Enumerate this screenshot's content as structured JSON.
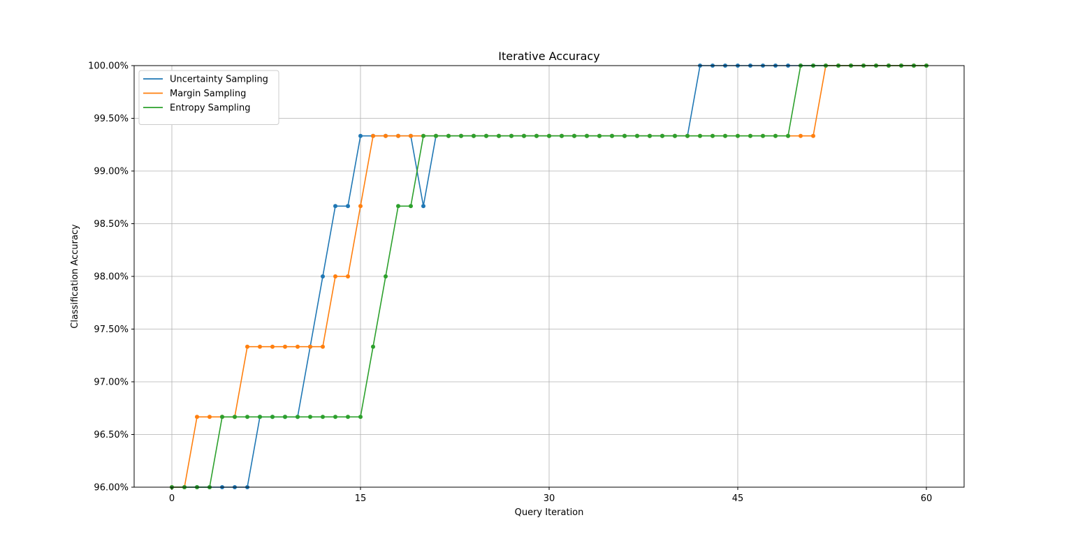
{
  "chart_data": {
    "type": "line",
    "title": "Iterative Accuracy",
    "xlabel": "Query Iteration",
    "ylabel": "Classification Accuracy",
    "xlim": [
      -3,
      63
    ],
    "ylim": [
      96.0,
      100.0
    ],
    "xticks": [
      0,
      15,
      30,
      45,
      60
    ],
    "xtick_labels": [
      "0",
      "15",
      "30",
      "45",
      "60"
    ],
    "yticks": [
      96.0,
      96.5,
      97.0,
      97.5,
      98.0,
      98.5,
      99.0,
      99.5,
      100.0
    ],
    "ytick_labels": [
      "96.00%",
      "96.50%",
      "97.00%",
      "97.50%",
      "98.00%",
      "98.50%",
      "99.00%",
      "99.50%",
      "100.00%"
    ],
    "grid": true,
    "legend_position": "top-left",
    "x": [
      0,
      1,
      2,
      3,
      4,
      5,
      6,
      7,
      8,
      9,
      10,
      11,
      12,
      13,
      14,
      15,
      16,
      17,
      18,
      19,
      20,
      21,
      22,
      23,
      24,
      25,
      26,
      27,
      28,
      29,
      30,
      31,
      32,
      33,
      34,
      35,
      36,
      37,
      38,
      39,
      40,
      41,
      42,
      43,
      44,
      45,
      46,
      47,
      48,
      49,
      50,
      51,
      52,
      53,
      54,
      55,
      56,
      57,
      58,
      59,
      60
    ],
    "series": [
      {
        "name": "Uncertainty Sampling",
        "color": "#1f77b4",
        "values": [
          96.0,
          96.0,
          96.0,
          96.0,
          96.0,
          96.0,
          96.0,
          96.667,
          96.667,
          96.667,
          96.667,
          97.333,
          98.0,
          98.667,
          98.667,
          99.333,
          99.333,
          99.333,
          99.333,
          99.333,
          98.667,
          99.333,
          99.333,
          99.333,
          99.333,
          99.333,
          99.333,
          99.333,
          99.333,
          99.333,
          99.333,
          99.333,
          99.333,
          99.333,
          99.333,
          99.333,
          99.333,
          99.333,
          99.333,
          99.333,
          99.333,
          99.333,
          100.0,
          100.0,
          100.0,
          100.0,
          100.0,
          100.0,
          100.0,
          100.0,
          100.0,
          100.0,
          100.0,
          100.0,
          100.0,
          100.0,
          100.0,
          100.0,
          100.0,
          100.0,
          100.0
        ]
      },
      {
        "name": "Margin Sampling",
        "color": "#ff7f0e",
        "values": [
          96.0,
          96.0,
          96.667,
          96.667,
          96.667,
          96.667,
          97.333,
          97.333,
          97.333,
          97.333,
          97.333,
          97.333,
          97.333,
          98.0,
          98.0,
          98.667,
          99.333,
          99.333,
          99.333,
          99.333,
          99.333,
          99.333,
          99.333,
          99.333,
          99.333,
          99.333,
          99.333,
          99.333,
          99.333,
          99.333,
          99.333,
          99.333,
          99.333,
          99.333,
          99.333,
          99.333,
          99.333,
          99.333,
          99.333,
          99.333,
          99.333,
          99.333,
          99.333,
          99.333,
          99.333,
          99.333,
          99.333,
          99.333,
          99.333,
          99.333,
          99.333,
          99.333,
          100.0,
          100.0,
          100.0,
          100.0,
          100.0,
          100.0,
          100.0,
          100.0,
          100.0
        ]
      },
      {
        "name": "Entropy Sampling",
        "color": "#2ca02c",
        "values": [
          96.0,
          96.0,
          96.0,
          96.0,
          96.667,
          96.667,
          96.667,
          96.667,
          96.667,
          96.667,
          96.667,
          96.667,
          96.667,
          96.667,
          96.667,
          96.667,
          97.333,
          98.0,
          98.667,
          98.667,
          99.333,
          99.333,
          99.333,
          99.333,
          99.333,
          99.333,
          99.333,
          99.333,
          99.333,
          99.333,
          99.333,
          99.333,
          99.333,
          99.333,
          99.333,
          99.333,
          99.333,
          99.333,
          99.333,
          99.333,
          99.333,
          99.333,
          99.333,
          99.333,
          99.333,
          99.333,
          99.333,
          99.333,
          99.333,
          99.333,
          100.0,
          100.0,
          100.0,
          100.0,
          100.0,
          100.0,
          100.0,
          100.0,
          100.0,
          100.0,
          100.0
        ]
      }
    ]
  }
}
